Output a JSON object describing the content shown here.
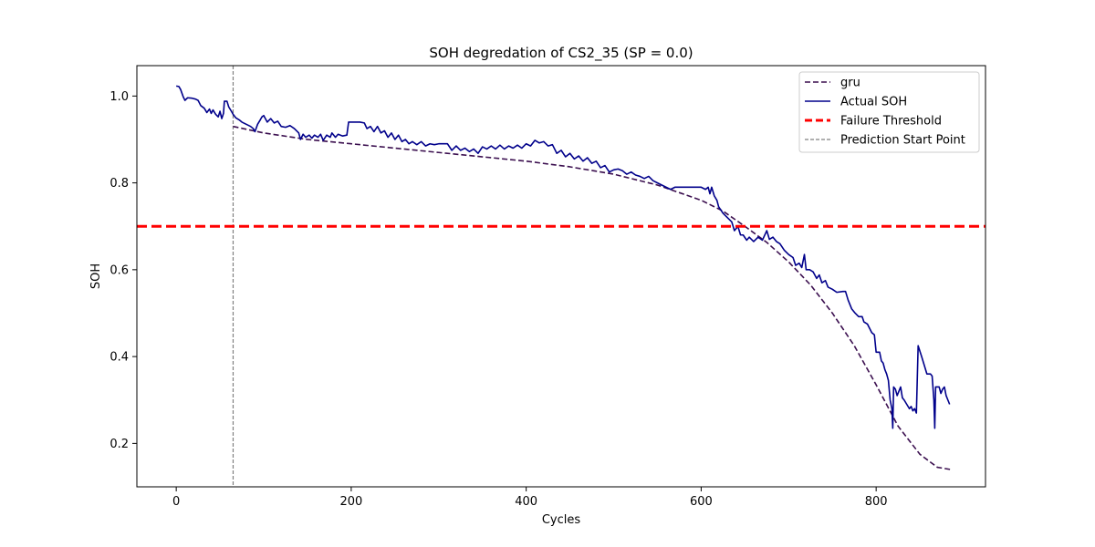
{
  "chart_data": {
    "type": "line",
    "title": "SOH degredation of CS2_35 (SP = 0.0)",
    "xlabel": "Cycles",
    "ylabel": "SOH",
    "xlim": [
      -45,
      925
    ],
    "ylim": [
      0.1,
      1.07
    ],
    "xticks": [
      0,
      200,
      400,
      600,
      800
    ],
    "yticks": [
      0.2,
      0.4,
      0.6,
      0.8,
      1.0
    ],
    "grid": false,
    "legend_position": "top-right",
    "threshold": {
      "name": "Failure Threshold",
      "y": 0.7,
      "color": "#ff0000"
    },
    "prediction_start": {
      "name": "Prediction Start Point",
      "x": 65,
      "color": "#808080"
    },
    "series": [
      {
        "name": "gru",
        "style": "dashed",
        "color": "#3b0f4f",
        "points": [
          [
            65,
            0.93
          ],
          [
            100,
            0.915
          ],
          [
            150,
            0.9
          ],
          [
            200,
            0.89
          ],
          [
            250,
            0.88
          ],
          [
            300,
            0.87
          ],
          [
            350,
            0.86
          ],
          [
            400,
            0.85
          ],
          [
            450,
            0.837
          ],
          [
            500,
            0.82
          ],
          [
            550,
            0.795
          ],
          [
            600,
            0.76
          ],
          [
            625,
            0.735
          ],
          [
            650,
            0.7
          ],
          [
            675,
            0.663
          ],
          [
            700,
            0.618
          ],
          [
            725,
            0.565
          ],
          [
            750,
            0.5
          ],
          [
            775,
            0.425
          ],
          [
            800,
            0.335
          ],
          [
            825,
            0.24
          ],
          [
            850,
            0.175
          ],
          [
            870,
            0.145
          ],
          [
            885,
            0.14
          ]
        ]
      },
      {
        "name": "Actual SOH",
        "style": "solid",
        "color": "#00008b",
        "points": [
          [
            0,
            1.023
          ],
          [
            3,
            1.022
          ],
          [
            5,
            1.015
          ],
          [
            8,
            0.998
          ],
          [
            10,
            0.99
          ],
          [
            13,
            0.996
          ],
          [
            18,
            0.995
          ],
          [
            22,
            0.993
          ],
          [
            25,
            0.99
          ],
          [
            28,
            0.978
          ],
          [
            32,
            0.972
          ],
          [
            35,
            0.962
          ],
          [
            38,
            0.97
          ],
          [
            40,
            0.96
          ],
          [
            42,
            0.968
          ],
          [
            45,
            0.958
          ],
          [
            48,
            0.952
          ],
          [
            50,
            0.965
          ],
          [
            52,
            0.948
          ],
          [
            54,
            0.96
          ],
          [
            55,
            0.988
          ],
          [
            58,
            0.988
          ],
          [
            60,
            0.975
          ],
          [
            63,
            0.965
          ],
          [
            65,
            0.958
          ],
          [
            68,
            0.95
          ],
          [
            72,
            0.945
          ],
          [
            75,
            0.94
          ],
          [
            80,
            0.935
          ],
          [
            85,
            0.93
          ],
          [
            88,
            0.925
          ],
          [
            90,
            0.918
          ],
          [
            93,
            0.935
          ],
          [
            96,
            0.945
          ],
          [
            98,
            0.952
          ],
          [
            100,
            0.955
          ],
          [
            104,
            0.94
          ],
          [
            108,
            0.948
          ],
          [
            112,
            0.938
          ],
          [
            116,
            0.942
          ],
          [
            120,
            0.93
          ],
          [
            125,
            0.928
          ],
          [
            130,
            0.932
          ],
          [
            135,
            0.925
          ],
          [
            140,
            0.915
          ],
          [
            142,
            0.9
          ],
          [
            145,
            0.912
          ],
          [
            148,
            0.905
          ],
          [
            152,
            0.91
          ],
          [
            155,
            0.903
          ],
          [
            158,
            0.91
          ],
          [
            162,
            0.905
          ],
          [
            165,
            0.912
          ],
          [
            168,
            0.898
          ],
          [
            172,
            0.91
          ],
          [
            176,
            0.905
          ],
          [
            178,
            0.915
          ],
          [
            182,
            0.905
          ],
          [
            185,
            0.912
          ],
          [
            190,
            0.908
          ],
          [
            195,
            0.91
          ],
          [
            197,
            0.94
          ],
          [
            210,
            0.94
          ],
          [
            215,
            0.938
          ],
          [
            218,
            0.925
          ],
          [
            222,
            0.93
          ],
          [
            226,
            0.918
          ],
          [
            230,
            0.93
          ],
          [
            234,
            0.915
          ],
          [
            238,
            0.92
          ],
          [
            242,
            0.905
          ],
          [
            246,
            0.915
          ],
          [
            250,
            0.9
          ],
          [
            254,
            0.91
          ],
          [
            258,
            0.895
          ],
          [
            262,
            0.9
          ],
          [
            266,
            0.89
          ],
          [
            270,
            0.895
          ],
          [
            275,
            0.888
          ],
          [
            280,
            0.895
          ],
          [
            285,
            0.885
          ],
          [
            290,
            0.89
          ],
          [
            295,
            0.888
          ],
          [
            300,
            0.89
          ],
          [
            310,
            0.89
          ],
          [
            315,
            0.875
          ],
          [
            320,
            0.885
          ],
          [
            325,
            0.875
          ],
          [
            330,
            0.88
          ],
          [
            335,
            0.872
          ],
          [
            340,
            0.878
          ],
          [
            345,
            0.868
          ],
          [
            350,
            0.883
          ],
          [
            355,
            0.878
          ],
          [
            360,
            0.885
          ],
          [
            365,
            0.878
          ],
          [
            370,
            0.887
          ],
          [
            375,
            0.878
          ],
          [
            380,
            0.885
          ],
          [
            385,
            0.88
          ],
          [
            390,
            0.887
          ],
          [
            395,
            0.88
          ],
          [
            400,
            0.89
          ],
          [
            405,
            0.885
          ],
          [
            410,
            0.898
          ],
          [
            415,
            0.892
          ],
          [
            420,
            0.895
          ],
          [
            425,
            0.885
          ],
          [
            430,
            0.888
          ],
          [
            435,
            0.868
          ],
          [
            440,
            0.875
          ],
          [
            445,
            0.86
          ],
          [
            450,
            0.868
          ],
          [
            455,
            0.855
          ],
          [
            460,
            0.862
          ],
          [
            465,
            0.85
          ],
          [
            470,
            0.858
          ],
          [
            475,
            0.845
          ],
          [
            480,
            0.85
          ],
          [
            485,
            0.835
          ],
          [
            490,
            0.84
          ],
          [
            495,
            0.825
          ],
          [
            500,
            0.83
          ],
          [
            505,
            0.832
          ],
          [
            510,
            0.828
          ],
          [
            515,
            0.82
          ],
          [
            520,
            0.825
          ],
          [
            525,
            0.818
          ],
          [
            530,
            0.815
          ],
          [
            535,
            0.81
          ],
          [
            540,
            0.815
          ],
          [
            545,
            0.805
          ],
          [
            550,
            0.8
          ],
          [
            555,
            0.795
          ],
          [
            560,
            0.79
          ],
          [
            565,
            0.785
          ],
          [
            570,
            0.79
          ],
          [
            590,
            0.79
          ],
          [
            600,
            0.79
          ],
          [
            605,
            0.785
          ],
          [
            608,
            0.79
          ],
          [
            610,
            0.775
          ],
          [
            612,
            0.79
          ],
          [
            615,
            0.77
          ],
          [
            618,
            0.76
          ],
          [
            620,
            0.745
          ],
          [
            625,
            0.73
          ],
          [
            630,
            0.72
          ],
          [
            635,
            0.71
          ],
          [
            638,
            0.69
          ],
          [
            642,
            0.7
          ],
          [
            645,
            0.68
          ],
          [
            648,
            0.68
          ],
          [
            652,
            0.668
          ],
          [
            655,
            0.675
          ],
          [
            660,
            0.665
          ],
          [
            665,
            0.675
          ],
          [
            670,
            0.668
          ],
          [
            675,
            0.69
          ],
          [
            678,
            0.67
          ],
          [
            682,
            0.675
          ],
          [
            686,
            0.665
          ],
          [
            690,
            0.66
          ],
          [
            695,
            0.645
          ],
          [
            700,
            0.635
          ],
          [
            705,
            0.628
          ],
          [
            708,
            0.61
          ],
          [
            712,
            0.615
          ],
          [
            715,
            0.605
          ],
          [
            718,
            0.635
          ],
          [
            720,
            0.6
          ],
          [
            724,
            0.6
          ],
          [
            728,
            0.595
          ],
          [
            732,
            0.58
          ],
          [
            735,
            0.588
          ],
          [
            738,
            0.57
          ],
          [
            742,
            0.575
          ],
          [
            745,
            0.56
          ],
          [
            750,
            0.555
          ],
          [
            755,
            0.548
          ],
          [
            762,
            0.55
          ],
          [
            765,
            0.55
          ],
          [
            768,
            0.53
          ],
          [
            772,
            0.51
          ],
          [
            776,
            0.5
          ],
          [
            780,
            0.492
          ],
          [
            784,
            0.492
          ],
          [
            786,
            0.48
          ],
          [
            790,
            0.475
          ],
          [
            795,
            0.455
          ],
          [
            798,
            0.45
          ],
          [
            800,
            0.41
          ],
          [
            804,
            0.41
          ],
          [
            806,
            0.39
          ],
          [
            808,
            0.385
          ],
          [
            810,
            0.37
          ],
          [
            812,
            0.36
          ],
          [
            814,
            0.345
          ],
          [
            816,
            0.3
          ],
          [
            818,
            0.28
          ],
          [
            819,
            0.235
          ],
          [
            820,
            0.33
          ],
          [
            822,
            0.325
          ],
          [
            824,
            0.31
          ],
          [
            826,
            0.32
          ],
          [
            828,
            0.33
          ],
          [
            830,
            0.305
          ],
          [
            832,
            0.3
          ],
          [
            835,
            0.29
          ],
          [
            838,
            0.28
          ],
          [
            840,
            0.285
          ],
          [
            842,
            0.275
          ],
          [
            844,
            0.28
          ],
          [
            846,
            0.27
          ],
          [
            848,
            0.425
          ],
          [
            852,
            0.4
          ],
          [
            855,
            0.38
          ],
          [
            858,
            0.36
          ],
          [
            862,
            0.36
          ],
          [
            864,
            0.355
          ],
          [
            866,
            0.3
          ],
          [
            867,
            0.235
          ],
          [
            868,
            0.33
          ],
          [
            872,
            0.33
          ],
          [
            874,
            0.315
          ],
          [
            876,
            0.325
          ],
          [
            878,
            0.33
          ],
          [
            880,
            0.31
          ],
          [
            882,
            0.3
          ],
          [
            884,
            0.29
          ]
        ]
      }
    ]
  }
}
